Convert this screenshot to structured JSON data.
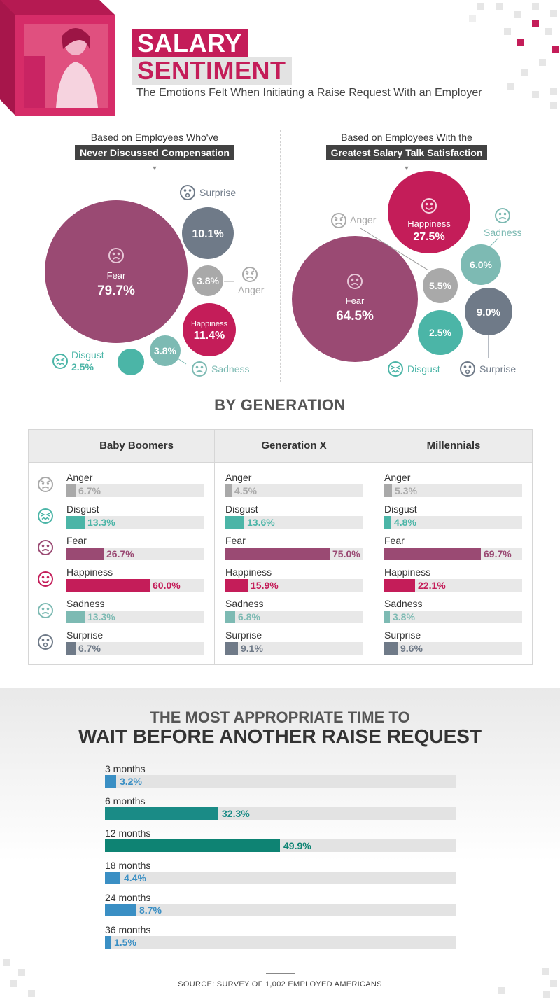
{
  "header": {
    "title_line1": "SALARY",
    "title_line2": "SENTIMENT",
    "subtitle": "The Emotions Felt When Initiating a Raise Request With an Employer"
  },
  "colors": {
    "Anger": "#a9a9a9",
    "Disgust": "#4bb5a7",
    "Fear": "#9a4a73",
    "Happiness": "#c41d59",
    "Sadness": "#7dbab3",
    "Surprise": "#6f7a88",
    "wait_blue": "#3a8fc4",
    "wait_teal": "#1a8b86",
    "wait_green": "#0e8373"
  },
  "chart_data": [
    {
      "type": "bubble",
      "title_line1": "Based on Employees Who've",
      "title_line2": "Never Discussed Compensation",
      "series": [
        {
          "name": "Fear",
          "value": 79.7,
          "label": "79.7%"
        },
        {
          "name": "Surprise",
          "value": 10.1,
          "label": "10.1%"
        },
        {
          "name": "Anger",
          "value": 3.8,
          "label": "3.8%"
        },
        {
          "name": "Happiness",
          "value": 11.4,
          "label": "11.4%"
        },
        {
          "name": "Sadness",
          "value": 3.8,
          "label": "3.8%"
        },
        {
          "name": "Disgust",
          "value": 2.5,
          "label": "2.5%"
        }
      ]
    },
    {
      "type": "bubble",
      "title_line1": "Based on Employees With the",
      "title_line2": "Greatest Salary Talk Satisfaction",
      "series": [
        {
          "name": "Fear",
          "value": 64.5,
          "label": "64.5%"
        },
        {
          "name": "Happiness",
          "value": 27.5,
          "label": "27.5%"
        },
        {
          "name": "Anger",
          "value": 5.5,
          "label": "5.5%"
        },
        {
          "name": "Sadness",
          "value": 6.0,
          "label": "6.0%"
        },
        {
          "name": "Surprise",
          "value": 9.0,
          "label": "9.0%"
        },
        {
          "name": "Disgust",
          "value": 2.5,
          "label": "2.5%"
        }
      ]
    },
    {
      "type": "bar",
      "title": "BY GENERATION",
      "categories": [
        "Anger",
        "Disgust",
        "Fear",
        "Happiness",
        "Sadness",
        "Surprise"
      ],
      "xlim": [
        0,
        75
      ],
      "series": [
        {
          "name": "Baby Boomers",
          "values": [
            6.7,
            13.3,
            26.7,
            60.0,
            13.3,
            6.7
          ],
          "labels": [
            "6.7%",
            "13.3%",
            "26.7%",
            "60.0%",
            "13.3%",
            "6.7%"
          ]
        },
        {
          "name": "Generation X",
          "values": [
            4.5,
            13.6,
            75.0,
            15.9,
            6.8,
            9.1
          ],
          "labels": [
            "4.5%",
            "13.6%",
            "75.0%",
            "15.9%",
            "6.8%",
            "9.1%"
          ]
        },
        {
          "name": "Millennials",
          "values": [
            5.3,
            4.8,
            69.7,
            22.1,
            3.8,
            9.6
          ],
          "labels": [
            "5.3%",
            "4.8%",
            "69.7%",
            "22.1%",
            "3.8%",
            "9.6%"
          ]
        }
      ]
    },
    {
      "type": "bar",
      "title_line1": "THE MOST APPROPRIATE TIME TO",
      "title_line2": "WAIT BEFORE ANOTHER RAISE REQUEST",
      "categories": [
        "3 months",
        "6 months",
        "12 months",
        "18 months",
        "24 months",
        "36 months"
      ],
      "values": [
        3.2,
        32.3,
        49.9,
        4.4,
        8.7,
        1.5
      ],
      "labels": [
        "3.2%",
        "32.3%",
        "49.9%",
        "4.4%",
        "8.7%",
        "1.5%"
      ],
      "colors": [
        "#3a8fc4",
        "#1a8b86",
        "#0e8373",
        "#3a8fc4",
        "#3a8fc4",
        "#3a8fc4"
      ],
      "xlim": [
        0,
        100
      ]
    }
  ],
  "source": "SOURCE: SURVEY OF 1,002 EMPLOYED AMERICANS"
}
